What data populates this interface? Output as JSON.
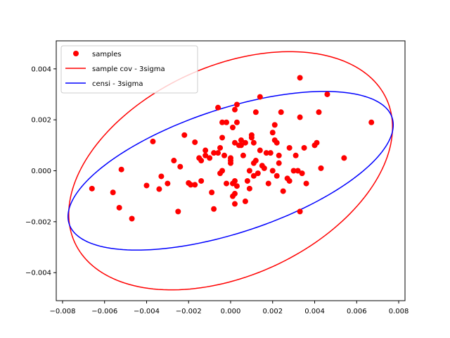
{
  "chart_data": {
    "type": "scatter",
    "title": "",
    "xlabel": "",
    "ylabel": "",
    "xlim": [
      -0.0083,
      0.0083
    ],
    "ylim": [
      -0.0051,
      0.0051
    ],
    "grid": false,
    "legend_position": "top-left",
    "x_ticks": [
      -0.008,
      -0.006,
      -0.004,
      -0.002,
      0.0,
      0.002,
      0.004,
      0.006,
      0.008
    ],
    "x_tick_labels": [
      "−0.008",
      "−0.006",
      "−0.004",
      "−0.002",
      "0.000",
      "0.002",
      "0.004",
      "0.006",
      "0.008"
    ],
    "y_ticks": [
      -0.004,
      -0.002,
      0.0,
      0.002,
      0.004
    ],
    "y_tick_labels": [
      "−0.004",
      "−0.002",
      "0.000",
      "0.002",
      "0.004"
    ],
    "legend": [
      {
        "label": "samples",
        "color": "#ff0000",
        "kind": "marker"
      },
      {
        "label": "sample cov - 3sigma",
        "color": "#ff0000",
        "kind": "line"
      },
      {
        "label": "censi - 3sigma",
        "color": "#0000ff",
        "kind": "line"
      }
    ],
    "series": [
      {
        "name": "samples",
        "type": "scatter",
        "color": "#ff0000",
        "points": [
          [
            -0.0066,
            -0.0007
          ],
          [
            -0.0056,
            -0.00085
          ],
          [
            -0.0053,
            -0.00145
          ],
          [
            -0.0052,
            5e-05
          ],
          [
            -0.0047,
            -0.00188
          ],
          [
            -0.004,
            -0.00058
          ],
          [
            -0.0037,
            0.00115
          ],
          [
            -0.0034,
            -0.00072
          ],
          [
            -0.0033,
            -0.00022
          ],
          [
            -0.003,
            -0.0005
          ],
          [
            -0.0027,
            0.0004
          ],
          [
            -0.0025,
            -0.0016
          ],
          [
            -0.0024,
            0.00016
          ],
          [
            -0.0022,
            0.0014
          ],
          [
            -0.002,
            -0.00048
          ],
          [
            -0.0019,
            -0.00055
          ],
          [
            -0.0017,
            0.00112
          ],
          [
            -0.0017,
            -0.00055
          ],
          [
            -0.0015,
            0.0005
          ],
          [
            -0.0014,
            -0.0004
          ],
          [
            -0.0014,
            0.0004
          ],
          [
            -0.0012,
            0.0008
          ],
          [
            -0.0012,
            0.0006
          ],
          [
            -0.001,
            0.0005
          ],
          [
            -0.0009,
            -0.00085
          ],
          [
            -0.0008,
            -0.0015
          ],
          [
            -0.0008,
            0.0007
          ],
          [
            -0.0006,
            0.00248
          ],
          [
            -0.0006,
            0.0007
          ],
          [
            -0.0005,
            0.0009
          ],
          [
            -0.0005,
            -0.0001
          ],
          [
            -0.0004,
            0.0
          ],
          [
            -0.0004,
            0.0019
          ],
          [
            -0.0004,
            0.0013
          ],
          [
            -0.0003,
            0.0006
          ],
          [
            -0.0002,
            0.0019
          ],
          [
            -0.0002,
            -0.0005
          ],
          [
            0.0,
            0.0005
          ],
          [
            0.0,
            0.0004
          ],
          [
            0.0,
            0.0003
          ],
          [
            0.0001,
            -0.001
          ],
          [
            0.0001,
            -0.0005
          ],
          [
            0.0001,
            0.0017
          ],
          [
            0.0002,
            0.0011
          ],
          [
            0.0002,
            -0.0004
          ],
          [
            0.0002,
            0.0024
          ],
          [
            0.0002,
            -0.0009
          ],
          [
            0.0002,
            -0.0013
          ],
          [
            0.0003,
            0.0026
          ],
          [
            0.0003,
            0.0019
          ],
          [
            0.0003,
            -0.0006
          ],
          [
            0.0004,
            0.001
          ],
          [
            0.0005,
            0.0012
          ],
          [
            0.0005,
            0.001
          ],
          [
            0.0006,
            0.0006
          ],
          [
            0.0007,
            0.0011
          ],
          [
            0.0007,
            -0.0012
          ],
          [
            0.0008,
            -0.0004
          ],
          [
            0.0009,
            0.0
          ],
          [
            0.0009,
            -0.0007
          ],
          [
            0.001,
            0.0014
          ],
          [
            0.001,
            0.0013
          ],
          [
            0.0011,
            0.0011
          ],
          [
            0.0011,
            0.0003
          ],
          [
            0.0011,
            -0.0002
          ],
          [
            0.0012,
            0.0023
          ],
          [
            0.0012,
            0.0004
          ],
          [
            0.0013,
            -0.0001
          ],
          [
            0.0014,
            0.0029
          ],
          [
            0.0014,
            0.0008
          ],
          [
            0.0015,
            0.0002
          ],
          [
            0.0016,
            0.0001
          ],
          [
            0.0017,
            0.0007
          ],
          [
            0.0018,
            -0.0005
          ],
          [
            0.0019,
            0.0007
          ],
          [
            0.002,
            0.0015
          ],
          [
            0.002,
            0.0
          ],
          [
            0.0021,
            0.0018
          ],
          [
            0.0021,
            0.0012
          ],
          [
            0.0022,
            0.0011
          ],
          [
            0.0022,
            -0.0002
          ],
          [
            0.0023,
            0.0003
          ],
          [
            0.0023,
            0.0006
          ],
          [
            0.0024,
            0.0023
          ],
          [
            0.0025,
            -0.0008
          ],
          [
            0.0027,
            -0.0003
          ],
          [
            0.0028,
            -0.0004
          ],
          [
            0.0028,
            0.0009
          ],
          [
            0.003,
            0.0
          ],
          [
            0.0031,
            0.0006
          ],
          [
            0.0032,
            0.0
          ],
          [
            0.0033,
            0.00365
          ],
          [
            0.0033,
            0.0021
          ],
          [
            0.0033,
            -0.0016
          ],
          [
            0.0034,
            -0.0001
          ],
          [
            0.0035,
            0.0009
          ],
          [
            0.0036,
            -0.0005
          ],
          [
            0.004,
            0.001
          ],
          [
            0.0041,
            0.0011
          ],
          [
            0.0042,
            0.0023
          ],
          [
            0.0043,
            0.0001
          ],
          [
            0.0046,
            0.003
          ],
          [
            0.0054,
            0.0005
          ],
          [
            0.0067,
            0.0019
          ]
        ]
      },
      {
        "name": "sample cov - 3sigma",
        "type": "ellipse",
        "color": "#ff0000",
        "center": [
          0.0,
          0.0
        ],
        "semi_axes": [
          0.00797,
          0.00421
        ],
        "rotation_deg": 17.5
      },
      {
        "name": "censi - 3sigma",
        "type": "ellipse",
        "color": "#0000ff",
        "center": [
          0.0,
          0.0
        ],
        "semi_axes": [
          0.00797,
          0.00247
        ],
        "rotation_deg": 14.5
      }
    ]
  }
}
